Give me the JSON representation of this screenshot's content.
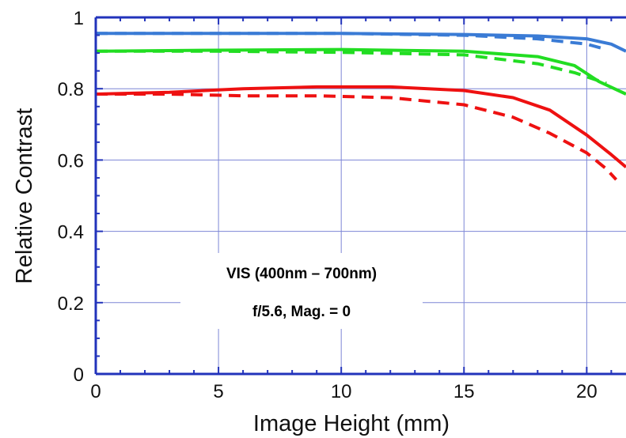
{
  "chart_data": {
    "type": "line",
    "title": "",
    "xlabel": "Image Height (mm)",
    "ylabel": "Relative Contrast",
    "xlim": [
      0,
      21.6
    ],
    "ylim": [
      0,
      1
    ],
    "x_ticks": [
      0,
      5,
      10,
      15,
      20
    ],
    "x_tick_labels": [
      "0",
      "5",
      "10",
      "15",
      "20"
    ],
    "y_ticks": [
      0,
      0.2,
      0.4,
      0.6,
      0.8,
      1
    ],
    "y_tick_labels": [
      "0",
      "0.2",
      "0.4",
      "0.6",
      "0.8",
      "1"
    ],
    "grid": true,
    "legend": "none",
    "annotations": [
      "VIS (400nm – 700nm)",
      "f/5.6,  Mag. = 0"
    ],
    "series": [
      {
        "color": "#3a7bd5",
        "dash": false,
        "x": [
          0,
          5,
          10,
          15,
          18,
          20,
          21,
          21.6
        ],
        "y": [
          0.955,
          0.955,
          0.955,
          0.952,
          0.948,
          0.94,
          0.925,
          0.905
        ]
      },
      {
        "color": "#3a7bd5",
        "dash": true,
        "x": [
          0,
          5,
          10,
          15,
          18,
          20,
          20.8
        ],
        "y": [
          0.955,
          0.955,
          0.955,
          0.95,
          0.94,
          0.925,
          0.91
        ]
      },
      {
        "color": "#22dd22",
        "dash": false,
        "x": [
          0,
          5,
          10,
          15,
          18,
          19.5,
          20.5,
          21.6
        ],
        "y": [
          0.905,
          0.908,
          0.91,
          0.905,
          0.89,
          0.865,
          0.82,
          0.785
        ]
      },
      {
        "color": "#22dd22",
        "dash": true,
        "x": [
          0,
          5,
          10,
          15,
          18,
          19.5,
          20.8
        ],
        "y": [
          0.905,
          0.905,
          0.902,
          0.895,
          0.87,
          0.845,
          0.815
        ]
      },
      {
        "color": "#ee1111",
        "dash": false,
        "x": [
          0,
          3,
          6,
          9,
          12,
          15,
          17,
          18.5,
          20,
          21,
          21.6
        ],
        "y": [
          0.785,
          0.79,
          0.8,
          0.805,
          0.805,
          0.795,
          0.775,
          0.74,
          0.67,
          0.615,
          0.58
        ]
      },
      {
        "color": "#ee1111",
        "dash": true,
        "x": [
          0,
          3,
          6,
          9,
          12,
          15,
          17,
          18.5,
          20,
          20.8,
          21.2
        ],
        "y": [
          0.785,
          0.785,
          0.78,
          0.78,
          0.775,
          0.755,
          0.72,
          0.675,
          0.62,
          0.575,
          0.545
        ]
      }
    ]
  }
}
